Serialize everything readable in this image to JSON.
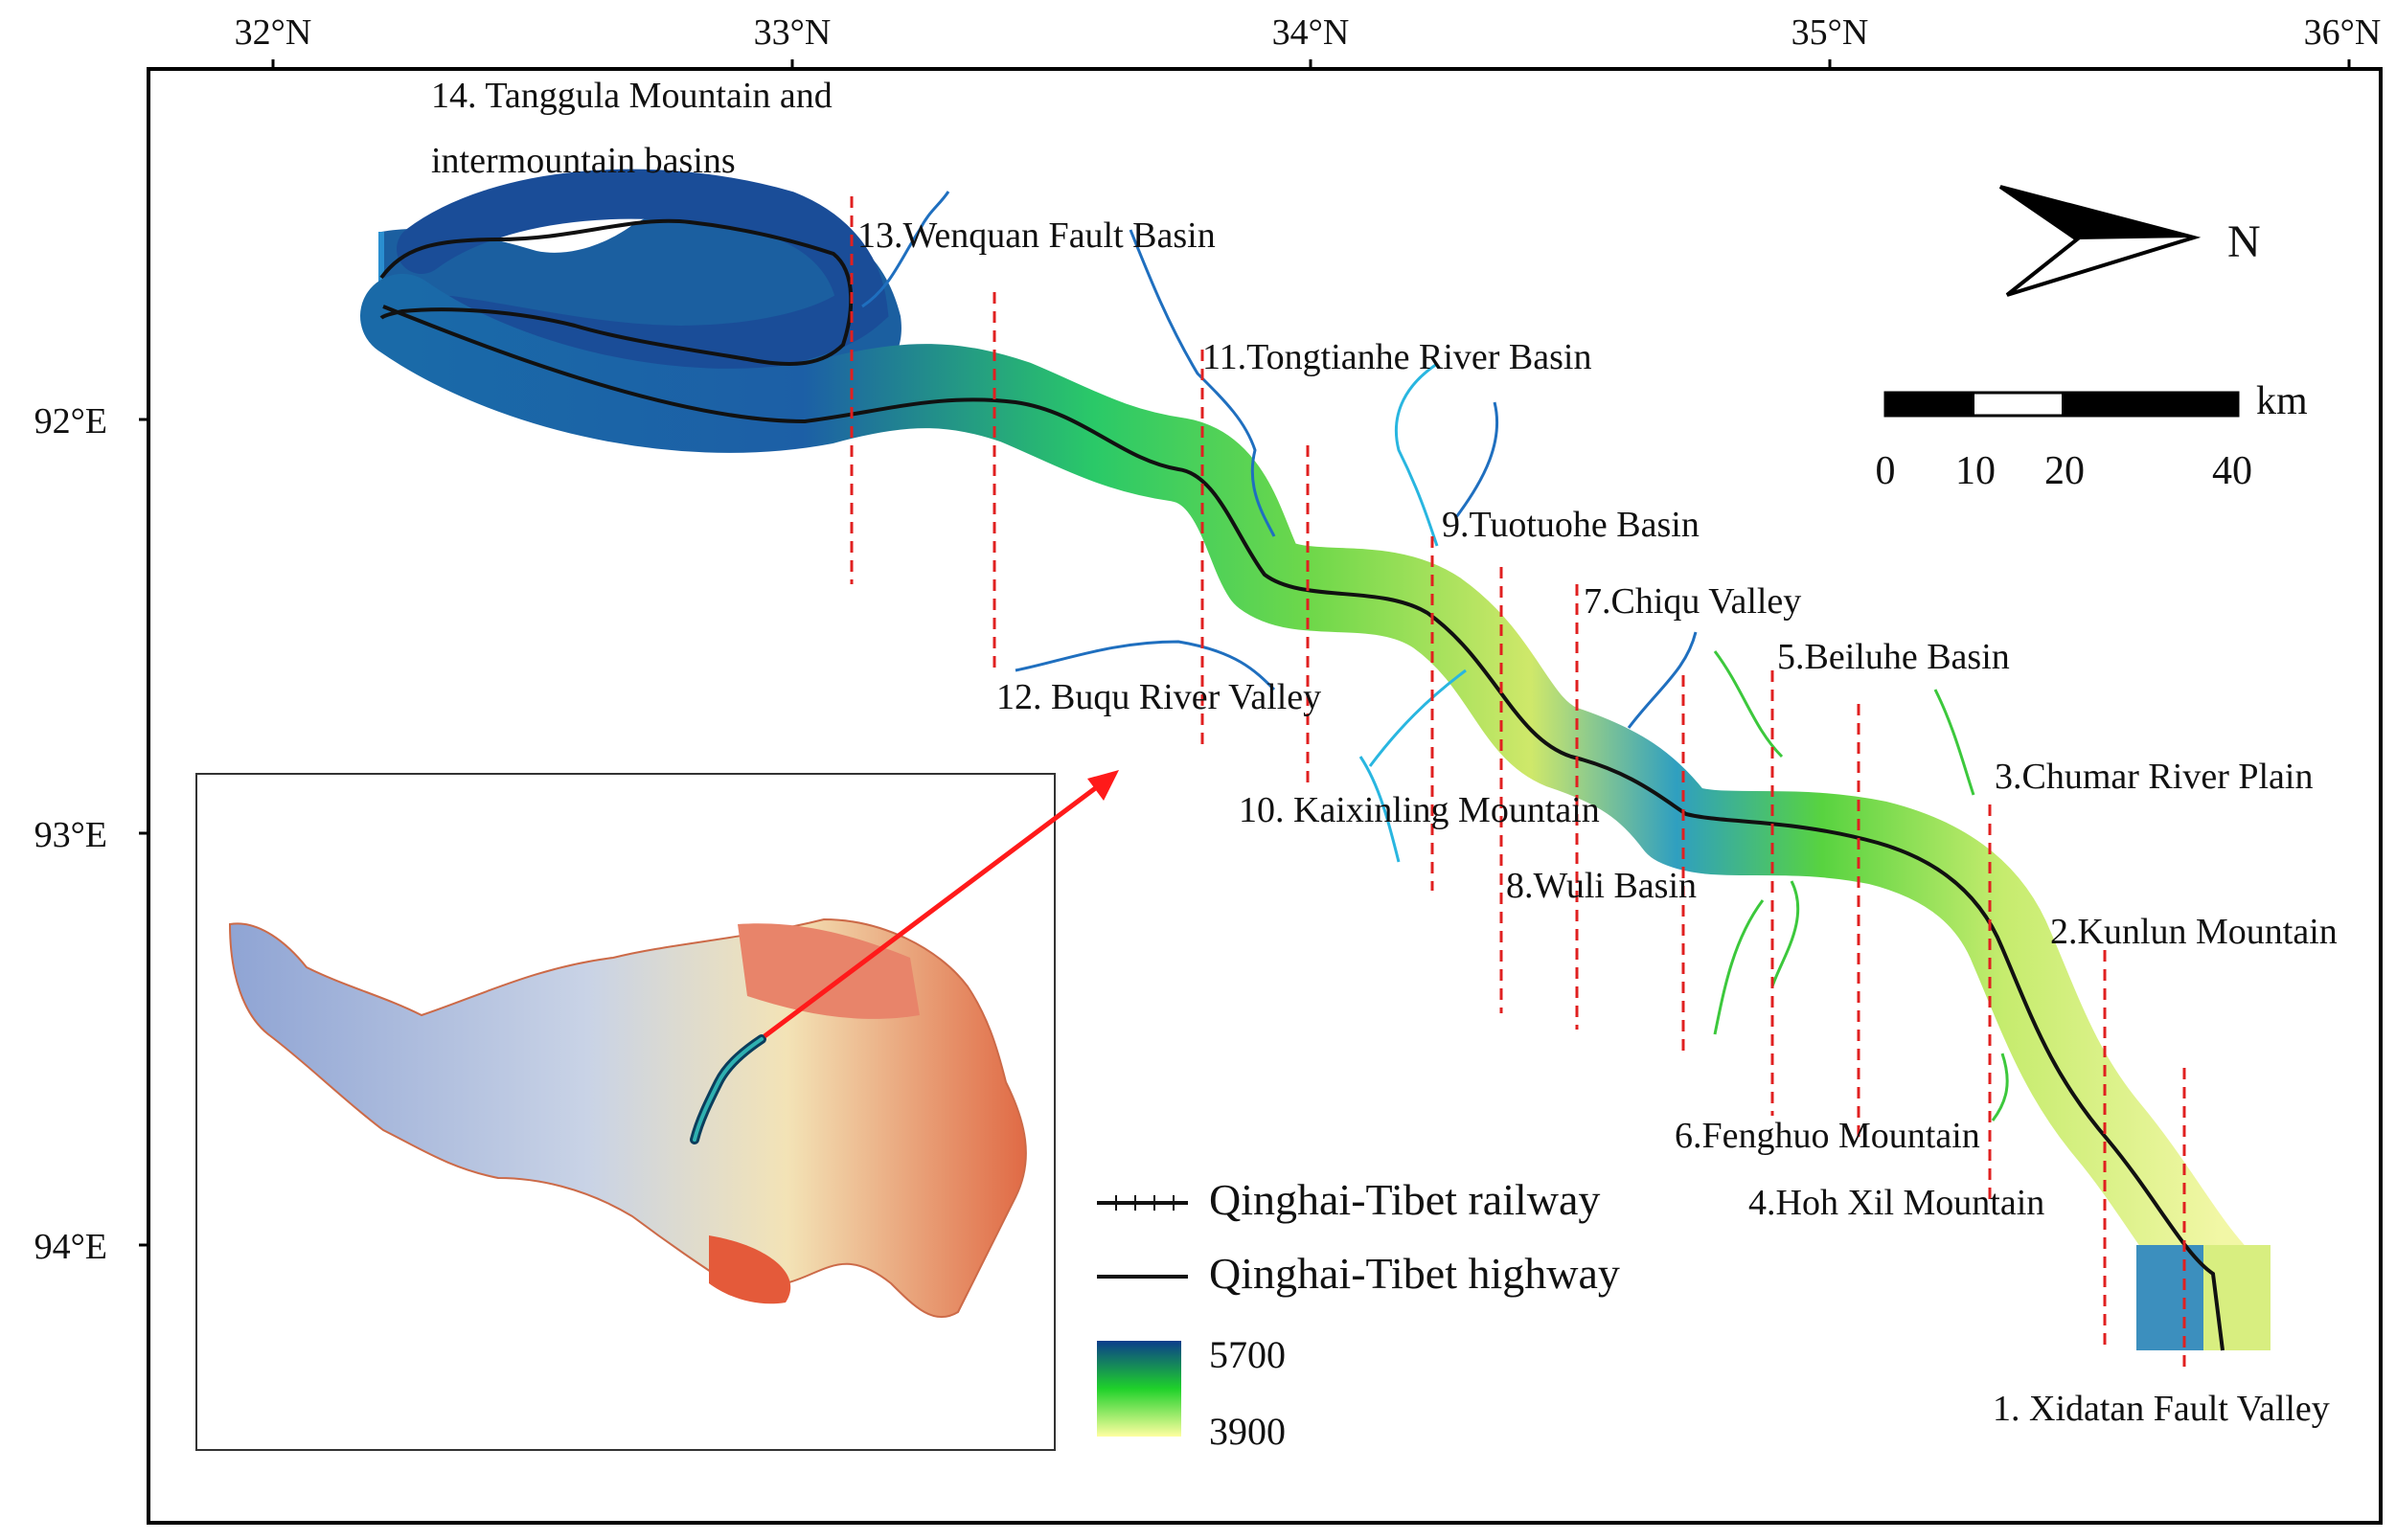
{
  "axes": {
    "top_ticks": [
      "32°N",
      "33°N",
      "34°N",
      "35°N",
      "36°N"
    ],
    "left_ticks": [
      "92°E",
      "93°E",
      "94°E"
    ]
  },
  "regions": [
    {
      "label": "14. Tanggula Mountain and",
      "label2": "intermountain basins"
    },
    {
      "label": "13.Wenquan Fault Basin"
    },
    {
      "label": "12. Buqu River Valley"
    },
    {
      "label": "11.Tongtianhe  River Basin"
    },
    {
      "label": "10. Kaixinling Mountain"
    },
    {
      "label": "9.Tuotuohe Basin"
    },
    {
      "label": "8.Wuli Basin"
    },
    {
      "label": "7.Chiqu Valley"
    },
    {
      "label": "6.Fenghuo Mountain"
    },
    {
      "label": "5.Beiluhe Basin"
    },
    {
      "label": "4.Hoh Xil Mountain"
    },
    {
      "label": "3.Chumar River Plain"
    },
    {
      "label": "2.Kunlun Mountain"
    },
    {
      "label": "1. Xidatan Fault Valley"
    }
  ],
  "north_arrow": {
    "label": "N"
  },
  "scale_bar": {
    "unit": "km",
    "ticks": [
      "0",
      "10",
      "20",
      "40"
    ]
  },
  "legend": {
    "railway": "Qinghai-Tibet railway",
    "highway": "Qinghai-Tibet highway",
    "elev_high": "5700",
    "elev_low": "3900",
    "colors": {
      "high": "#0b3d8c",
      "mid": "#1fd12a",
      "low": "#ffffa0"
    }
  },
  "colors": {
    "boundary_lines": "#e02020",
    "rivers": "#1f6fbf",
    "rivers_light": "#29b6e0",
    "rivers_green": "#3cc83c",
    "arrow": "#ff1a1a"
  }
}
